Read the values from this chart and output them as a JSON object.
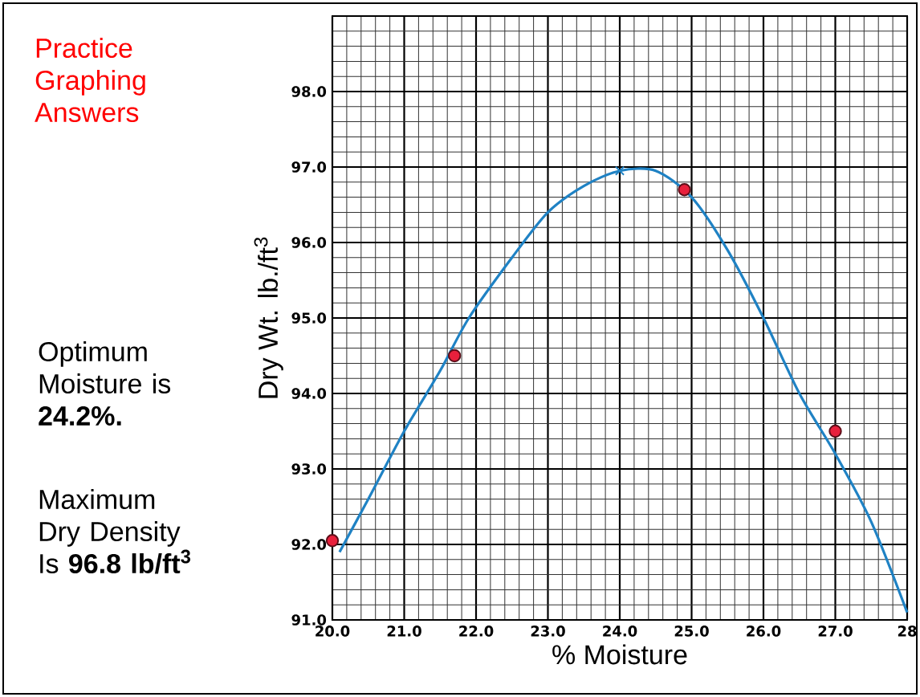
{
  "chart_data": {
    "type": "scatter",
    "title": "Practice Graphing Answers",
    "xlabel": "% Moisture",
    "ylabel": "Dry Wt. lb./ft$^{3}$",
    "annotations": [
      "Optimum Moisture is **24.2%.**",
      "Maximum Dry Density Is **96.8 lb/ft$^{3}$**"
    ],
    "xlim": [
      20,
      28
    ],
    "ylim": [
      91,
      99
    ],
    "xticks": [
      {
        "value": 20,
        "label": "20.0"
      },
      {
        "value": 21,
        "label": "21.0"
      },
      {
        "value": 22,
        "label": "22.0"
      },
      {
        "value": 23,
        "label": "23.0"
      },
      {
        "value": 24,
        "label": "24.0"
      },
      {
        "value": 25,
        "label": "25.0"
      },
      {
        "value": 26,
        "label": "26.0"
      },
      {
        "value": 27,
        "label": "27.0"
      },
      {
        "value": 28,
        "label": "28"
      }
    ],
    "yticks": [
      {
        "value": 91,
        "label": "91.0"
      },
      {
        "value": 92,
        "label": "92.0"
      },
      {
        "value": 93,
        "label": "93.0"
      },
      {
        "value": 94,
        "label": "94.0"
      },
      {
        "value": 95,
        "label": "95.0"
      },
      {
        "value": 96,
        "label": "96.0"
      },
      {
        "value": 97,
        "label": "97.0"
      },
      {
        "value": 98,
        "label": "98.0"
      },
      {
        "value": 99,
        "label": null
      }
    ],
    "grid": true,
    "series": [
      {
        "type": "line",
        "color": "#1f82c4",
        "marker": "none",
        "x": [
          20.1,
          20.5,
          21.0,
          21.5,
          21.9,
          22.5,
          23.0,
          23.5,
          24.0,
          24.5,
          25.0,
          25.5,
          26.0,
          26.5,
          27.0,
          27.5,
          28.0
        ],
        "values": [
          91.9,
          92.6,
          93.5,
          94.3,
          95.0,
          95.8,
          96.4,
          96.75,
          96.95,
          96.95,
          96.6,
          95.9,
          95.0,
          94.0,
          93.2,
          92.3,
          91.1
        ]
      },
      {
        "color": "#e8203c",
        "marker": "circle",
        "x": [
          20.0,
          21.7,
          24.9,
          27.0
        ],
        "values": [
          92.05,
          94.5,
          96.7,
          93.5
        ]
      },
      {
        "type": "scatter",
        "color": "#1f82c4",
        "marker": "cross",
        "x": [
          24.0
        ],
        "values": [
          96.95
        ]
      }
    ]
  }
}
